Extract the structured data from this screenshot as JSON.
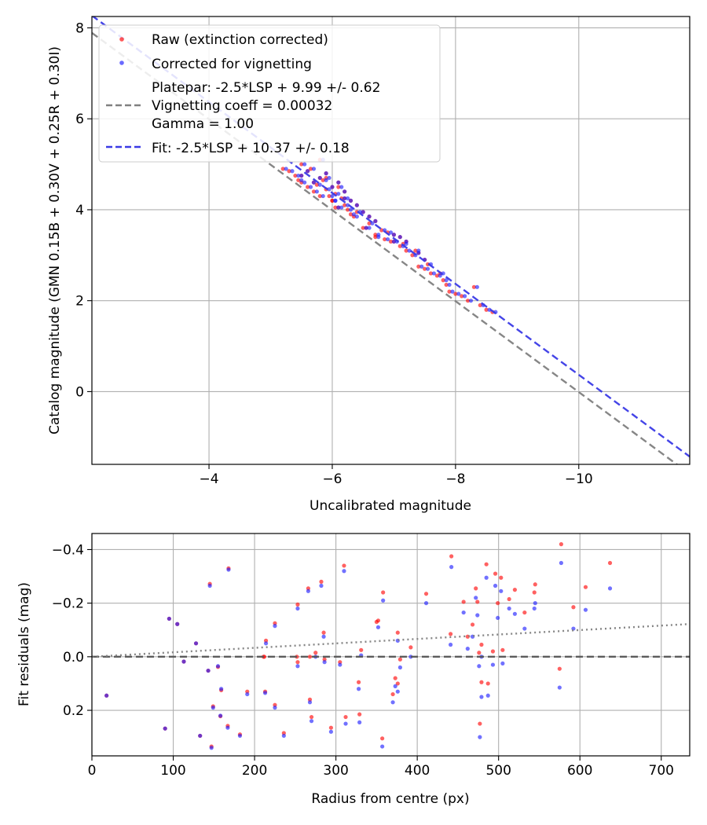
{
  "chart_data": [
    {
      "type": "scatter",
      "title": "",
      "xlabel": "Uncalibrated magnitude",
      "ylabel": "Catalog magnitude (GMN 0.15B + 0.30V + 0.25R + 0.30I)",
      "xlim": [
        -2.1,
        -11.8
      ],
      "ylim": [
        8.25,
        -1.6
      ],
      "x_inverted": true,
      "y_inverted": true,
      "xticks": [
        -4,
        -6,
        -8,
        -10
      ],
      "xtick_labels": [
        "−4",
        "−6",
        "−8",
        "−10"
      ],
      "yticks": [
        0,
        2,
        4,
        6,
        8
      ],
      "ytick_labels": [
        "0",
        "2",
        "4",
        "6",
        "8"
      ],
      "grid": true,
      "legend_position": "top-left",
      "series": [
        {
          "name": "Raw (extinction corrected)",
          "kind": "points",
          "color": "#ff0000",
          "x": [
            -5.2,
            -5.3,
            -5.4,
            -5.5,
            -5.5,
            -5.6,
            -5.6,
            -5.7,
            -5.7,
            -5.8,
            -5.8,
            -5.9,
            -5.9,
            -5.95,
            -6.0,
            -6.0,
            -6.05,
            -6.1,
            -6.1,
            -6.15,
            -6.2,
            -6.2,
            -6.3,
            -6.3,
            -6.4,
            -6.4,
            -6.5,
            -6.5,
            -6.6,
            -6.6,
            -6.7,
            -6.7,
            -6.8,
            -6.85,
            -6.9,
            -7.0,
            -7.0,
            -7.1,
            -7.1,
            -7.2,
            -7.2,
            -7.3,
            -7.4,
            -7.4,
            -7.5,
            -7.5,
            -7.6,
            -7.7,
            -7.8,
            -7.85,
            -7.9,
            -8.0,
            -8.1,
            -8.2,
            -8.3,
            -8.4,
            -8.5,
            -8.6,
            -5.5,
            -5.65,
            -5.75,
            -5.8,
            -5.9,
            -6.0,
            -6.1,
            -6.2,
            -6.35,
            -6.55,
            -6.7,
            -6.95,
            -7.15,
            -7.35,
            -7.55,
            -7.75,
            -5.45,
            -5.85,
            -6.05,
            -6.25
          ],
          "y": [
            4.9,
            4.85,
            4.75,
            4.6,
            4.75,
            4.5,
            4.85,
            4.4,
            4.6,
            4.3,
            4.7,
            4.45,
            4.8,
            4.3,
            4.2,
            4.5,
            4.35,
            4.05,
            4.6,
            4.25,
            4.1,
            4.4,
            3.9,
            4.2,
            3.95,
            4.1,
            3.6,
            3.95,
            3.7,
            3.85,
            3.45,
            3.75,
            3.55,
            3.35,
            3.5,
            3.3,
            3.45,
            3.2,
            3.4,
            3.1,
            3.3,
            3.0,
            2.75,
            3.05,
            2.7,
            2.9,
            2.6,
            2.55,
            2.45,
            2.35,
            2.2,
            2.15,
            2.1,
            2.0,
            2.3,
            1.9,
            1.8,
            1.75,
            5.0,
            4.9,
            4.55,
            5.1,
            4.7,
            4.2,
            4.5,
            4.25,
            3.85,
            3.6,
            3.4,
            3.3,
            3.25,
            3.1,
            2.8,
            2.6,
            4.65,
            4.65,
            4.05,
            4.0
          ]
        },
        {
          "name": "Corrected for vignetting",
          "kind": "points",
          "color": "#1a1aff",
          "x": [
            -5.25,
            -5.35,
            -5.45,
            -5.55,
            -5.5,
            -5.65,
            -5.6,
            -5.75,
            -5.7,
            -5.85,
            -5.8,
            -5.95,
            -5.9,
            -6.0,
            -6.05,
            -6.0,
            -6.1,
            -6.15,
            -6.1,
            -6.2,
            -6.25,
            -6.2,
            -6.35,
            -6.3,
            -6.45,
            -6.4,
            -6.55,
            -6.5,
            -6.65,
            -6.6,
            -6.75,
            -6.7,
            -6.85,
            -6.9,
            -6.95,
            -7.05,
            -7.0,
            -7.15,
            -7.1,
            -7.25,
            -7.2,
            -7.35,
            -7.45,
            -7.4,
            -7.55,
            -7.5,
            -7.65,
            -7.75,
            -7.85,
            -7.9,
            -7.95,
            -8.05,
            -8.15,
            -8.25,
            -8.35,
            -8.45,
            -8.55,
            -8.65,
            -5.55,
            -5.7,
            -5.8,
            -5.85,
            -5.95,
            -6.05,
            -6.15,
            -6.25,
            -6.4,
            -6.6,
            -6.75,
            -7.0,
            -7.2,
            -7.4,
            -7.6,
            -7.8,
            -5.5,
            -5.9,
            -6.1,
            -6.3
          ],
          "y": [
            4.9,
            4.85,
            4.75,
            4.6,
            4.75,
            4.5,
            4.85,
            4.4,
            4.6,
            4.3,
            4.7,
            4.45,
            4.8,
            4.3,
            4.2,
            4.5,
            4.35,
            4.05,
            4.6,
            4.25,
            4.1,
            4.4,
            3.9,
            4.2,
            3.95,
            4.1,
            3.6,
            3.95,
            3.7,
            3.85,
            3.45,
            3.75,
            3.55,
            3.35,
            3.5,
            3.3,
            3.45,
            3.2,
            3.4,
            3.1,
            3.3,
            3.0,
            2.75,
            3.05,
            2.7,
            2.9,
            2.6,
            2.55,
            2.45,
            2.35,
            2.2,
            2.15,
            2.1,
            2.0,
            2.3,
            1.9,
            1.8,
            1.75,
            5.0,
            4.9,
            4.55,
            5.1,
            4.7,
            4.2,
            4.5,
            4.25,
            3.85,
            3.6,
            3.4,
            3.3,
            3.25,
            3.1,
            2.8,
            2.6,
            4.65,
            4.65,
            4.05,
            4.0
          ]
        },
        {
          "name": "Platepar: -2.5*LSP + 9.99 +/- 0.62",
          "name_lines": [
            "Platepar: -2.5*LSP + 9.99 +/- 0.62",
            "Vignetting coeff = 0.00032",
            "Gamma = 1.00"
          ],
          "kind": "dashed-line",
          "color": "#808080",
          "slope": 1.0,
          "intercept": 9.99
        },
        {
          "name": "Fit: -2.5*LSP + 10.37 +/- 0.18",
          "kind": "dashed-line",
          "color": "#3a3ae6",
          "slope": 1.0,
          "intercept": 10.37
        }
      ]
    },
    {
      "type": "scatter",
      "title": "",
      "xlabel": "Radius from centre (px)",
      "ylabel": "Fit residuals (mag)",
      "xlim": [
        0,
        735
      ],
      "ylim": [
        -0.46,
        0.37
      ],
      "xticks": [
        0,
        100,
        200,
        300,
        400,
        500,
        600,
        700
      ],
      "xtick_labels": [
        "0",
        "100",
        "200",
        "300",
        "400",
        "500",
        "600",
        "700"
      ],
      "yticks": [
        -0.4,
        -0.2,
        0.0,
        0.2
      ],
      "ytick_labels": [
        "−0.4",
        "−0.2",
        "0.0",
        "0.2"
      ],
      "grid": true,
      "series": [
        {
          "name": "",
          "kind": "points",
          "color": "#ff0000",
          "x": [
            18,
            90,
            95,
            105,
            113,
            128,
            133,
            143,
            145,
            147,
            149,
            155,
            158,
            159,
            167,
            168,
            182,
            191,
            213,
            214,
            225,
            225,
            236,
            253,
            253,
            266,
            268,
            270,
            275,
            282,
            285,
            286,
            294,
            305,
            310,
            312,
            328,
            329,
            331,
            352,
            357,
            358,
            370,
            373,
            376,
            376,
            379,
            392,
            411,
            442,
            441,
            457,
            462,
            468,
            472,
            474,
            476,
            477,
            479,
            479,
            485,
            487,
            493,
            496,
            499,
            503,
            505,
            513,
            520,
            532,
            544,
            545,
            575,
            577,
            592,
            607,
            637,
            211,
            212,
            252,
            268,
            350
          ],
          "y": [
            0.145,
            0.268,
            -0.142,
            -0.122,
            0.018,
            -0.05,
            0.295,
            0.052,
            -0.272,
            0.335,
            0.185,
            0.038,
            0.222,
            0.125,
            0.258,
            -0.33,
            0.29,
            0.13,
            0.13,
            -0.06,
            0.18,
            -0.125,
            0.285,
            -0.195,
            0.02,
            -0.255,
            0.16,
            0.225,
            -0.015,
            -0.28,
            -0.09,
            0.01,
            0.265,
            0.02,
            -0.34,
            0.225,
            0.095,
            0.215,
            -0.025,
            -0.135,
            0.305,
            -0.24,
            0.14,
            0.08,
            0.1,
            -0.09,
            0.01,
            -0.035,
            -0.235,
            -0.375,
            -0.085,
            -0.205,
            -0.075,
            -0.12,
            -0.255,
            -0.205,
            -0.015,
            0.25,
            0.095,
            -0.045,
            -0.345,
            0.1,
            -0.02,
            -0.31,
            -0.2,
            -0.295,
            -0.025,
            -0.215,
            -0.25,
            -0.165,
            -0.24,
            -0.27,
            0.045,
            -0.42,
            -0.185,
            -0.26,
            -0.35,
            0.0,
            0.0,
            0.0,
            0.0,
            -0.13
          ]
        },
        {
          "name": "",
          "kind": "points",
          "color": "#1a1aff",
          "x": [
            18,
            90,
            95,
            105,
            113,
            128,
            133,
            143,
            145,
            147,
            149,
            155,
            158,
            159,
            167,
            168,
            182,
            191,
            213,
            214,
            225,
            225,
            236,
            253,
            253,
            266,
            268,
            270,
            275,
            282,
            285,
            286,
            294,
            305,
            310,
            312,
            328,
            329,
            331,
            352,
            357,
            358,
            370,
            373,
            376,
            376,
            379,
            392,
            411,
            442,
            441,
            457,
            462,
            468,
            472,
            474,
            476,
            477,
            479,
            479,
            485,
            487,
            493,
            496,
            499,
            503,
            505,
            513,
            520,
            532,
            544,
            545,
            575,
            577,
            592,
            607,
            637
          ],
          "y": [
            0.145,
            0.268,
            -0.142,
            -0.122,
            0.018,
            -0.05,
            0.295,
            0.052,
            -0.265,
            0.34,
            0.19,
            0.035,
            0.22,
            0.12,
            0.265,
            -0.325,
            0.295,
            0.14,
            0.135,
            -0.05,
            0.19,
            -0.115,
            0.295,
            -0.18,
            0.035,
            -0.245,
            0.17,
            0.24,
            0.0,
            -0.265,
            -0.075,
            0.02,
            0.28,
            0.03,
            -0.32,
            0.25,
            0.12,
            0.245,
            -0.005,
            -0.11,
            0.335,
            -0.21,
            0.17,
            0.11,
            0.13,
            -0.06,
            0.04,
            0.0,
            -0.2,
            -0.335,
            -0.045,
            -0.165,
            -0.03,
            -0.075,
            -0.22,
            -0.155,
            0.035,
            0.3,
            0.15,
            0.0,
            -0.295,
            0.145,
            0.03,
            -0.265,
            -0.145,
            -0.245,
            0.025,
            -0.18,
            -0.16,
            -0.105,
            -0.18,
            -0.2,
            0.115,
            -0.35,
            -0.105,
            -0.175,
            -0.255
          ]
        },
        {
          "name": "",
          "kind": "dashed-line",
          "color": "#555555",
          "x": [
            0,
            735
          ],
          "y": [
            0.0,
            0.0
          ]
        },
        {
          "name": "",
          "kind": "dotted-line",
          "color": "#808080",
          "x": [
            0,
            735
          ],
          "y": [
            0.0,
            -0.122
          ]
        }
      ]
    }
  ]
}
